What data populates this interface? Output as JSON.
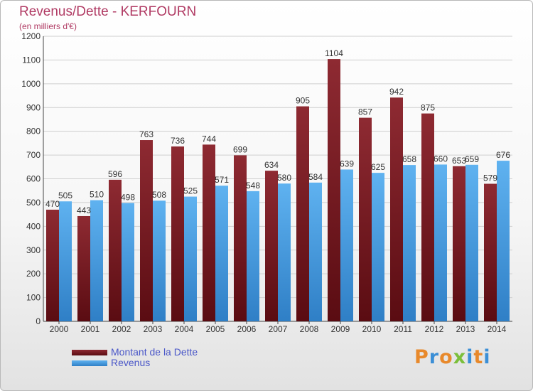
{
  "chart_data": {
    "type": "bar",
    "title": "Revenus/Dette - KERFOURN",
    "subtitle": "(en milliers d'€)",
    "xlabel": "",
    "ylabel": "",
    "ylim": [
      0,
      1200
    ],
    "yticks": [
      0,
      100,
      200,
      300,
      400,
      500,
      600,
      700,
      800,
      900,
      1000,
      1100,
      1200
    ],
    "grid": true,
    "legend_position": "bottom-left",
    "categories": [
      "2000",
      "2001",
      "2002",
      "2003",
      "2004",
      "2005",
      "2006",
      "2007",
      "2008",
      "2009",
      "2010",
      "2011",
      "2012",
      "2013",
      "2014"
    ],
    "series": [
      {
        "name": "Montant de la Dette",
        "color": "#7a1c24",
        "values": [
          470,
          443,
          596,
          763,
          736,
          744,
          699,
          634,
          905,
          1104,
          857,
          942,
          875,
          653,
          579
        ]
      },
      {
        "name": "Revenus",
        "color": "#4aa3e6",
        "values": [
          505,
          510,
          498,
          508,
          525,
          571,
          548,
          580,
          584,
          639,
          625,
          658,
          660,
          659,
          676
        ]
      }
    ]
  },
  "logo": {
    "letters": [
      "P",
      "r",
      "o",
      "x",
      "i",
      "t",
      "i"
    ],
    "colors": [
      "#e8892b",
      "#3b8fd6",
      "#e8892b",
      "#7bbf3a",
      "#3b8fd6",
      "#e8892b",
      "#3b8fd6"
    ]
  }
}
